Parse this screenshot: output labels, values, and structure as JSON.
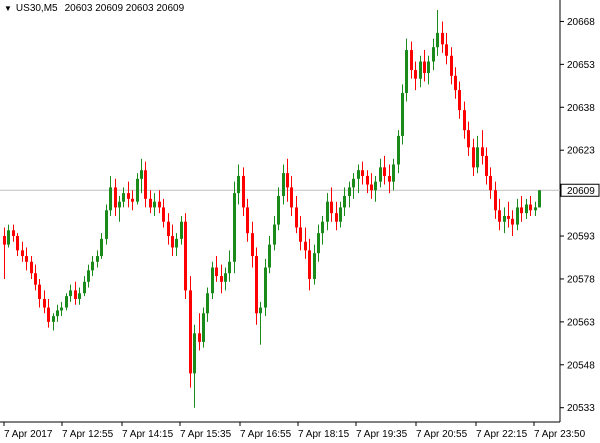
{
  "header": {
    "symbol": "US30,M5",
    "ohlc": "20603 20609 20603 20609",
    "menu_icon": "triangle-down-icon"
  },
  "colors": {
    "bull": "#1a8a1a",
    "bear": "#ff0000",
    "axis": "#000000",
    "price_line": "#c0c0c0",
    "background": "#ffffff"
  },
  "chart_data": {
    "type": "candlestick",
    "symbol": "US30",
    "timeframe": "M5",
    "ylim": [
      20528,
      20672
    ],
    "y_ticks": [
      "20668",
      "20653",
      "20638",
      "20623",
      "20609",
      "20593",
      "20578",
      "20563",
      "20548",
      "20533"
    ],
    "current_price": "20609",
    "x_ticks": [
      "7 Apr 2017",
      "7 Apr 12:55",
      "7 Apr 14:15",
      "7 Apr 15:35",
      "7 Apr 16:55",
      "7 Apr 18:15",
      "7 Apr 19:35",
      "7 Apr 20:55",
      "7 Apr 22:15",
      "7 Apr 23:50"
    ],
    "candles": [
      [
        20593,
        20596,
        20578,
        20590
      ],
      [
        20590,
        20597,
        20589,
        20595
      ],
      [
        20595,
        20597,
        20591,
        20593
      ],
      [
        20593,
        20594,
        20586,
        20588
      ],
      [
        20588,
        20591,
        20584,
        20586
      ],
      [
        20586,
        20589,
        20581,
        20584
      ],
      [
        20584,
        20586,
        20578,
        20580
      ],
      [
        20580,
        20583,
        20574,
        20576
      ],
      [
        20576,
        20578,
        20568,
        20571
      ],
      [
        20571,
        20574,
        20566,
        20568
      ],
      [
        20568,
        20571,
        20561,
        20563
      ],
      [
        20563,
        20566,
        20560,
        20565
      ],
      [
        20565,
        20569,
        20563,
        20567
      ],
      [
        20567,
        20570,
        20565,
        20568
      ],
      [
        20568,
        20573,
        20567,
        20572
      ],
      [
        20572,
        20576,
        20570,
        20574
      ],
      [
        20574,
        20577,
        20569,
        20571
      ],
      [
        20571,
        20575,
        20569,
        20573
      ],
      [
        20573,
        20579,
        20572,
        20577
      ],
      [
        20577,
        20583,
        20575,
        20581
      ],
      [
        20581,
        20586,
        20579,
        20584
      ],
      [
        20584,
        20588,
        20582,
        20586
      ],
      [
        20586,
        20594,
        20585,
        20592
      ],
      [
        20592,
        20604,
        20590,
        20602
      ],
      [
        20602,
        20614,
        20600,
        20610
      ],
      [
        20610,
        20613,
        20600,
        20603
      ],
      [
        20603,
        20607,
        20598,
        20605
      ],
      [
        20605,
        20610,
        20603,
        20608
      ],
      [
        20608,
        20612,
        20603,
        20606
      ],
      [
        20606,
        20609,
        20602,
        20605
      ],
      [
        20605,
        20615,
        20604,
        20613
      ],
      [
        20613,
        20620,
        20608,
        20616
      ],
      [
        20616,
        20619,
        20603,
        20606
      ],
      [
        20606,
        20609,
        20601,
        20603
      ],
      [
        20603,
        20608,
        20600,
        20605
      ],
      [
        20605,
        20609,
        20601,
        20603
      ],
      [
        20603,
        20606,
        20596,
        20598
      ],
      [
        20598,
        20601,
        20590,
        20593
      ],
      [
        20593,
        20597,
        20586,
        20589
      ],
      [
        20589,
        20594,
        20586,
        20592
      ],
      [
        20592,
        20600,
        20590,
        20598
      ],
      [
        20598,
        20601,
        20571,
        20574
      ],
      [
        20574,
        20579,
        20540,
        20545
      ],
      [
        20545,
        20562,
        20533,
        20559
      ],
      [
        20559,
        20566,
        20553,
        20556
      ],
      [
        20556,
        20568,
        20554,
        20566
      ],
      [
        20566,
        20575,
        20563,
        20573
      ],
      [
        20573,
        20584,
        20571,
        20582
      ],
      [
        20582,
        20586,
        20577,
        20579
      ],
      [
        20579,
        20583,
        20573,
        20577
      ],
      [
        20577,
        20582,
        20574,
        20580
      ],
      [
        20580,
        20588,
        20577,
        20584
      ],
      [
        20584,
        20612,
        20580,
        20608
      ],
      [
        20608,
        20618,
        20604,
        20614
      ],
      [
        20614,
        20617,
        20600,
        20603
      ],
      [
        20603,
        20606,
        20591,
        20594
      ],
      [
        20594,
        20598,
        20582,
        20586
      ],
      [
        20586,
        20589,
        20562,
        20566
      ],
      [
        20566,
        20570,
        20555,
        20568
      ],
      [
        20568,
        20585,
        20565,
        20582
      ],
      [
        20582,
        20593,
        20580,
        20590
      ],
      [
        20590,
        20600,
        20588,
        20597
      ],
      [
        20597,
        20610,
        20595,
        20607
      ],
      [
        20607,
        20618,
        20604,
        20615
      ],
      [
        20615,
        20620,
        20605,
        20610
      ],
      [
        20610,
        20614,
        20600,
        20603
      ],
      [
        20603,
        20607,
        20594,
        20596
      ],
      [
        20596,
        20600,
        20588,
        20591
      ],
      [
        20591,
        20596,
        20585,
        20588
      ],
      [
        20588,
        20592,
        20574,
        20578
      ],
      [
        20578,
        20590,
        20576,
        20587
      ],
      [
        20587,
        20597,
        20584,
        20594
      ],
      [
        20594,
        20600,
        20590,
        20598
      ],
      [
        20598,
        20608,
        20595,
        20605
      ],
      [
        20605,
        20610,
        20598,
        20601
      ],
      [
        20601,
        20605,
        20595,
        20598
      ],
      [
        20598,
        20605,
        20596,
        20603
      ],
      [
        20603,
        20610,
        20600,
        20607
      ],
      [
        20607,
        20612,
        20603,
        20610
      ],
      [
        20610,
        20615,
        20606,
        20613
      ],
      [
        20613,
        20618,
        20608,
        20616
      ],
      [
        20616,
        20619,
        20611,
        20614
      ],
      [
        20614,
        20616,
        20608,
        20611
      ],
      [
        20611,
        20615,
        20606,
        20609
      ],
      [
        20609,
        20614,
        20605,
        20612
      ],
      [
        20612,
        20620,
        20610,
        20617
      ],
      [
        20617,
        20621,
        20611,
        20614
      ],
      [
        20614,
        20618,
        20608,
        20612
      ],
      [
        20612,
        20620,
        20609,
        20618
      ],
      [
        20618,
        20630,
        20615,
        20628
      ],
      [
        20628,
        20646,
        20625,
        20643
      ],
      [
        20643,
        20662,
        20640,
        20658
      ],
      [
        20658,
        20661,
        20648,
        20651
      ],
      [
        20651,
        20654,
        20644,
        20648
      ],
      [
        20648,
        20656,
        20645,
        20654
      ],
      [
        20654,
        20658,
        20647,
        20650
      ],
      [
        20650,
        20656,
        20646,
        20654
      ],
      [
        20654,
        20662,
        20651,
        20659
      ],
      [
        20659,
        20672,
        20656,
        20664
      ],
      [
        20664,
        20668,
        20657,
        20660
      ],
      [
        20660,
        20664,
        20653,
        20656
      ],
      [
        20656,
        20659,
        20646,
        20649
      ],
      [
        20649,
        20652,
        20641,
        20644
      ],
      [
        20644,
        20647,
        20634,
        20637
      ],
      [
        20637,
        20640,
        20627,
        20630
      ],
      [
        20630,
        20633,
        20621,
        20624
      ],
      [
        20624,
        20627,
        20614,
        20617
      ],
      [
        20617,
        20628,
        20615,
        20624
      ],
      [
        20624,
        20630,
        20618,
        20621
      ],
      [
        20621,
        20624,
        20611,
        20614
      ],
      [
        20614,
        20617,
        20606,
        20609
      ],
      [
        20609,
        20612,
        20599,
        20602
      ],
      [
        20602,
        20606,
        20595,
        20598
      ],
      [
        20598,
        20603,
        20594,
        20600
      ],
      [
        20600,
        20605,
        20596,
        20599
      ],
      [
        20599,
        20602,
        20593,
        20597
      ],
      [
        20597,
        20606,
        20595,
        20603
      ],
      [
        20603,
        20607,
        20598,
        20601
      ],
      [
        20601,
        20606,
        20599,
        20604
      ],
      [
        20604,
        20607,
        20600,
        20602
      ],
      [
        20602,
        20605,
        20600,
        20603
      ],
      [
        20603,
        20609,
        20603,
        20609
      ]
    ]
  }
}
